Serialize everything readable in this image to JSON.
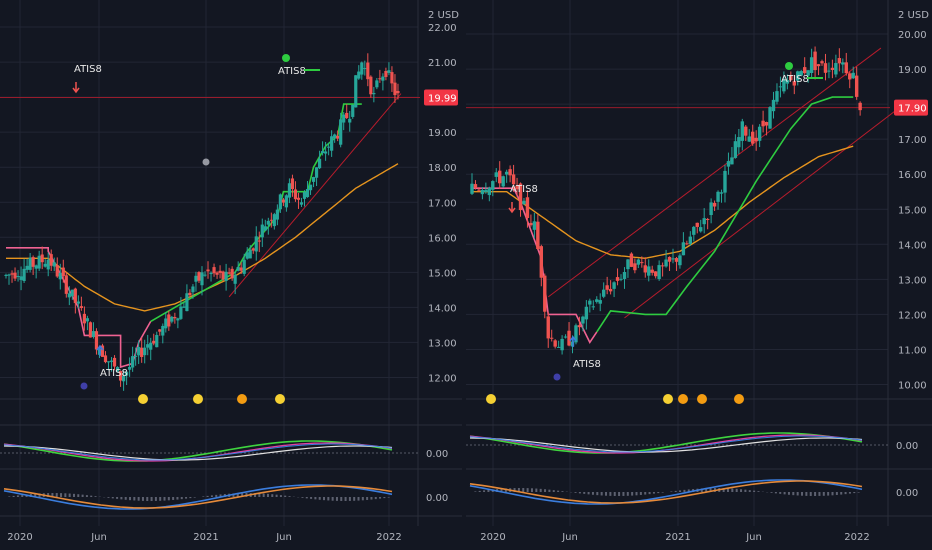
{
  "colors": {
    "background": "#131722",
    "grid": "#222634",
    "separator": "#2a2e39",
    "axis_text": "#b2b5be",
    "candle_up": "#26a69a",
    "candle_down": "#ef5350",
    "trail_up": "#2ecc40",
    "trail_down": "#f06292",
    "ma": "#e5941e",
    "trendline": "#b71c2c",
    "price_tag": "#f23645",
    "osc_green": "#3fd43f",
    "osc_pink": "#e040a0",
    "osc_blue": "#3b7ddd",
    "osc_white": "#e0e0e0",
    "osc_orange": "#e58a3a",
    "dot_yellow": "#f5d033",
    "dot_orange": "#f39c12"
  },
  "chart_data": [
    {
      "type": "candlestick",
      "currency_label": "2 USD",
      "last_price": "19.99",
      "signal_label": "ATIS8",
      "ylim": [
        11.5,
        22.6
      ],
      "y_ticks": [
        "22.00",
        "21.00",
        "20.00",
        "19.00",
        "18.00",
        "17.00",
        "16.00",
        "15.00",
        "14.00",
        "13.00",
        "12.00"
      ],
      "x_ticks": [
        "2020",
        "Jun",
        "2021",
        "Jun",
        "2022"
      ],
      "price_points": [
        [
          0,
          14.9
        ],
        [
          8,
          15.2
        ],
        [
          14,
          15.4
        ],
        [
          20,
          14.6
        ],
        [
          26,
          13.7
        ],
        [
          30,
          13.0
        ],
        [
          34,
          12.5
        ],
        [
          38,
          12.0
        ],
        [
          42,
          12.4
        ],
        [
          46,
          12.9
        ],
        [
          50,
          13.2
        ],
        [
          54,
          13.6
        ],
        [
          58,
          14.0
        ],
        [
          62,
          14.6
        ],
        [
          66,
          15.0
        ],
        [
          70,
          14.9
        ],
        [
          74,
          14.8
        ],
        [
          78,
          15.2
        ],
        [
          82,
          15.8
        ],
        [
          86,
          16.4
        ],
        [
          90,
          16.9
        ],
        [
          94,
          17.4
        ],
        [
          98,
          17.0
        ],
        [
          102,
          17.8
        ],
        [
          106,
          18.5
        ],
        [
          110,
          19.0
        ],
        [
          114,
          19.6
        ],
        [
          116,
          20.4
        ],
        [
          118,
          21.0
        ],
        [
          120,
          20.6
        ],
        [
          122,
          20.0
        ],
        [
          124,
          20.6
        ],
        [
          126,
          20.8
        ],
        [
          128,
          20.3
        ],
        [
          130,
          20.0
        ]
      ],
      "ma_points": [
        [
          0,
          15.4
        ],
        [
          14,
          15.4
        ],
        [
          26,
          14.6
        ],
        [
          36,
          14.1
        ],
        [
          46,
          13.9
        ],
        [
          56,
          14.1
        ],
        [
          66,
          14.5
        ],
        [
          76,
          14.9
        ],
        [
          86,
          15.4
        ],
        [
          96,
          16.0
        ],
        [
          106,
          16.7
        ],
        [
          116,
          17.4
        ],
        [
          126,
          17.9
        ],
        [
          130,
          18.1
        ]
      ],
      "trail_points": [
        [
          0,
          15.7
        ],
        [
          14,
          15.7
        ],
        [
          14,
          15.6
        ],
        [
          24,
          14.0
        ],
        [
          26,
          13.2
        ],
        [
          38,
          13.2
        ],
        [
          38,
          12.3
        ],
        [
          42,
          12.4
        ],
        [
          44,
          13.0
        ],
        [
          48,
          13.6
        ],
        [
          56,
          14.0
        ],
        [
          66,
          14.5
        ],
        [
          76,
          15.0
        ],
        [
          80,
          15.6
        ],
        [
          86,
          16.2
        ],
        [
          90,
          16.6
        ],
        [
          92,
          17.3
        ],
        [
          100,
          17.3
        ],
        [
          102,
          18.0
        ],
        [
          106,
          18.6
        ],
        [
          110,
          18.9
        ],
        [
          112,
          19.8
        ],
        [
          118,
          19.8
        ]
      ],
      "trail_flip_index": 9,
      "trend_lines": [
        [
          [
            74,
            14.3
          ],
          [
            131,
            20.1
          ]
        ]
      ],
      "oscillator_zero_label": "0.00",
      "macd_zero_label": "0.00"
    },
    {
      "type": "candlestick",
      "currency_label": "2 USD",
      "last_price": "17.90",
      "signal_label": "ATIS8",
      "ylim": [
        9.7,
        20.8
      ],
      "y_ticks": [
        "20.00",
        "19.00",
        "18.00",
        "17.00",
        "16.00",
        "15.00",
        "14.00",
        "13.00",
        "12.00",
        "11.00",
        "10.00"
      ],
      "x_ticks": [
        "2020",
        "Jun",
        "2021",
        "Jun",
        "2022"
      ],
      "price_points": [
        [
          0,
          15.6
        ],
        [
          6,
          15.8
        ],
        [
          10,
          16.0
        ],
        [
          14,
          15.2
        ],
        [
          18,
          14.5
        ],
        [
          20,
          13.2
        ],
        [
          22,
          11.4
        ],
        [
          26,
          11.1
        ],
        [
          30,
          11.5
        ],
        [
          34,
          12.2
        ],
        [
          38,
          12.6
        ],
        [
          42,
          13.0
        ],
        [
          46,
          13.5
        ],
        [
          50,
          13.4
        ],
        [
          54,
          13.2
        ],
        [
          58,
          13.5
        ],
        [
          62,
          14.0
        ],
        [
          66,
          14.6
        ],
        [
          70,
          15.2
        ],
        [
          74,
          16.2
        ],
        [
          78,
          17.3
        ],
        [
          82,
          17.0
        ],
        [
          86,
          17.8
        ],
        [
          90,
          18.6
        ],
        [
          94,
          18.8
        ],
        [
          98,
          19.2
        ],
        [
          102,
          19.0
        ],
        [
          106,
          19.3
        ],
        [
          110,
          18.8
        ],
        [
          112,
          17.9
        ]
      ],
      "ma_points": [
        [
          0,
          15.5
        ],
        [
          10,
          15.5
        ],
        [
          20,
          14.8
        ],
        [
          30,
          14.1
        ],
        [
          40,
          13.7
        ],
        [
          50,
          13.6
        ],
        [
          60,
          13.8
        ],
        [
          70,
          14.4
        ],
        [
          80,
          15.2
        ],
        [
          90,
          15.9
        ],
        [
          100,
          16.5
        ],
        [
          110,
          16.8
        ]
      ],
      "trail_points": [
        [
          0,
          15.6
        ],
        [
          12,
          15.6
        ],
        [
          14,
          15.2
        ],
        [
          20,
          13.6
        ],
        [
          22,
          12.0
        ],
        [
          30,
          12.0
        ],
        [
          34,
          11.2
        ],
        [
          36,
          11.5
        ],
        [
          40,
          12.1
        ],
        [
          50,
          12.0
        ],
        [
          56,
          12.0
        ],
        [
          62,
          12.8
        ],
        [
          70,
          13.8
        ],
        [
          76,
          14.8
        ],
        [
          82,
          15.8
        ],
        [
          86,
          16.4
        ],
        [
          92,
          17.3
        ],
        [
          98,
          18.0
        ],
        [
          104,
          18.2
        ],
        [
          110,
          18.2
        ]
      ],
      "trail_flip_index": 7,
      "trend_lines": [
        [
          [
            22,
            12.5
          ],
          [
            118,
            19.6
          ]
        ],
        [
          [
            44,
            11.9
          ],
          [
            126,
            18.1
          ]
        ]
      ],
      "oscillator_zero_label": "0.00",
      "macd_zero_label": "0.00"
    }
  ]
}
